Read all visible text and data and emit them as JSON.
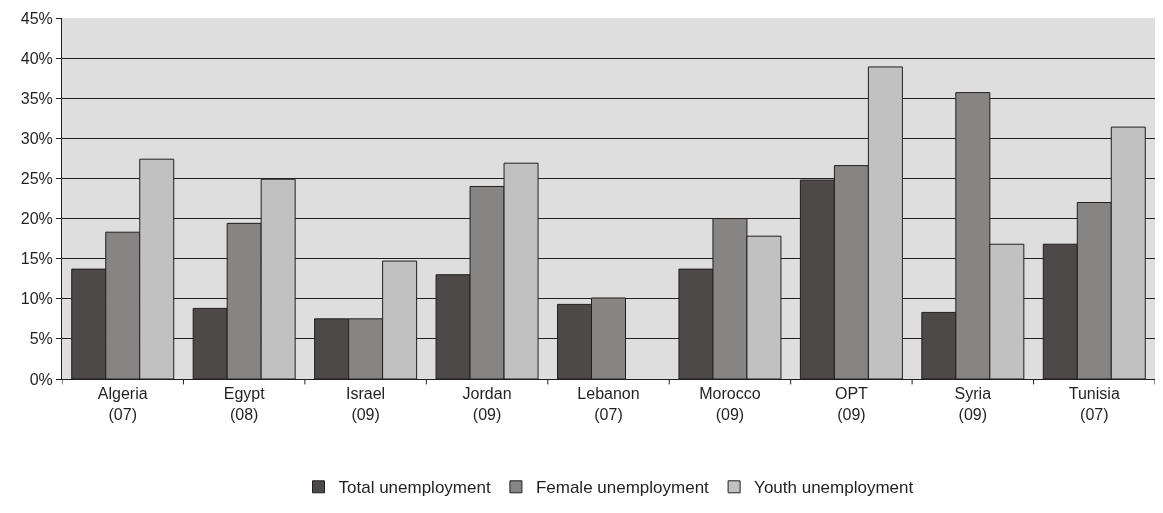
{
  "chart_data": {
    "type": "bar",
    "categories": [
      "Algeria\n(07)",
      "Egypt\n(08)",
      "Israel\n(09)",
      "Jordan\n(09)",
      "Lebanon\n(07)",
      "Morocco\n(09)",
      "OPT\n(09)",
      "Syria\n(09)",
      "Tunisia\n(07)"
    ],
    "series": [
      {
        "name": "Total unemployment",
        "color": "#4d4948",
        "values": [
          13.7,
          8.8,
          7.5,
          13.0,
          9.3,
          13.7,
          24.8,
          8.3,
          16.8
        ]
      },
      {
        "name": "Female unemployment",
        "color": "#868583",
        "values": [
          18.3,
          19.4,
          7.5,
          24.0,
          10.1,
          20.0,
          26.6,
          35.7,
          22.0
        ]
      },
      {
        "name": "Youth unemployment",
        "color": "#c1c1c1",
        "values": [
          27.4,
          24.9,
          14.7,
          26.9,
          null,
          17.8,
          38.9,
          16.8,
          31.4
        ]
      }
    ],
    "ylim": [
      0,
      45
    ],
    "yticks": [
      {
        "value": 0,
        "label": "0%"
      },
      {
        "value": 5,
        "label": "5%"
      },
      {
        "value": 10,
        "label": "10%"
      },
      {
        "value": 15,
        "label": "15%"
      },
      {
        "value": 20,
        "label": "20%"
      },
      {
        "value": 25,
        "label": "25%"
      },
      {
        "value": 30,
        "label": "30%"
      },
      {
        "value": 35,
        "label": "35%"
      },
      {
        "value": 40,
        "label": "40%"
      },
      {
        "value": 45,
        "label": "45%"
      }
    ],
    "grid": "y",
    "legend": "bottom"
  }
}
